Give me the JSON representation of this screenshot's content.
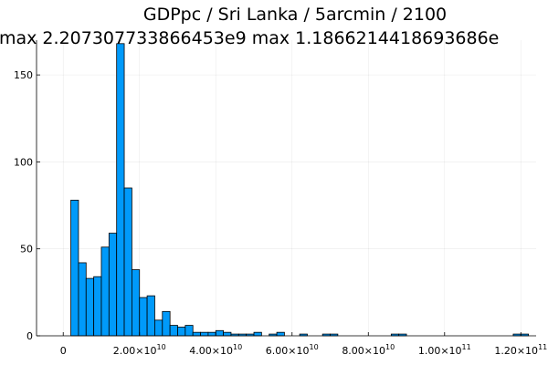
{
  "chart_data": {
    "type": "bar",
    "title": "GDPpc / Sri Lanka / 5arcmin / 2100",
    "subtitle": "max 2.207307733866453e9  max 1.1866214418693686e",
    "xlabel": "",
    "ylabel": "",
    "legend": "none",
    "grid": true,
    "xlim": [
      -7000000000.0,
      124000000000.0
    ],
    "ylim": [
      0,
      170
    ],
    "bin_width": 2000000000.0,
    "series": [
      {
        "color": "#009AFA",
        "bins": [
          {
            "x0": 2000000000.0,
            "x1": 4000000000.0,
            "value": 78
          },
          {
            "x0": 4000000000.0,
            "x1": 6000000000.0,
            "value": 42
          },
          {
            "x0": 6000000000.0,
            "x1": 8000000000.0,
            "value": 33
          },
          {
            "x0": 8000000000.0,
            "x1": 10000000000.0,
            "value": 34
          },
          {
            "x0": 10000000000.0,
            "x1": 12000000000.0,
            "value": 51
          },
          {
            "x0": 12000000000.0,
            "x1": 14000000000.0,
            "value": 59
          },
          {
            "x0": 14000000000.0,
            "x1": 16000000000.0,
            "value": 168
          },
          {
            "x0": 16000000000.0,
            "x1": 18000000000.0,
            "value": 85
          },
          {
            "x0": 18000000000.0,
            "x1": 20000000000.0,
            "value": 38
          },
          {
            "x0": 20000000000.0,
            "x1": 22000000000.0,
            "value": 22
          },
          {
            "x0": 22000000000.0,
            "x1": 24000000000.0,
            "value": 23
          },
          {
            "x0": 24000000000.0,
            "x1": 26000000000.0,
            "value": 9
          },
          {
            "x0": 26000000000.0,
            "x1": 28000000000.0,
            "value": 14
          },
          {
            "x0": 28000000000.0,
            "x1": 30000000000.0,
            "value": 6
          },
          {
            "x0": 30000000000.0,
            "x1": 32000000000.0,
            "value": 5
          },
          {
            "x0": 32000000000.0,
            "x1": 34000000000.0,
            "value": 6
          },
          {
            "x0": 34000000000.0,
            "x1": 36000000000.0,
            "value": 2
          },
          {
            "x0": 36000000000.0,
            "x1": 38000000000.0,
            "value": 2
          },
          {
            "x0": 38000000000.0,
            "x1": 40000000000.0,
            "value": 2
          },
          {
            "x0": 40000000000.0,
            "x1": 42000000000.0,
            "value": 3
          },
          {
            "x0": 42000000000.0,
            "x1": 44000000000.0,
            "value": 2
          },
          {
            "x0": 44000000000.0,
            "x1": 46000000000.0,
            "value": 1
          },
          {
            "x0": 46000000000.0,
            "x1": 48000000000.0,
            "value": 1
          },
          {
            "x0": 48000000000.0,
            "x1": 50000000000.0,
            "value": 1
          },
          {
            "x0": 50000000000.0,
            "x1": 52000000000.0,
            "value": 2
          },
          {
            "x0": 52000000000.0,
            "x1": 54000000000.0,
            "value": 0
          },
          {
            "x0": 54000000000.0,
            "x1": 56000000000.0,
            "value": 1
          },
          {
            "x0": 56000000000.0,
            "x1": 58000000000.0,
            "value": 2
          },
          {
            "x0": 62000000000.0,
            "x1": 64000000000.0,
            "value": 1
          },
          {
            "x0": 68000000000.0,
            "x1": 70000000000.0,
            "value": 1
          },
          {
            "x0": 70000000000.0,
            "x1": 72000000000.0,
            "value": 1
          },
          {
            "x0": 86000000000.0,
            "x1": 88000000000.0,
            "value": 1
          },
          {
            "x0": 88000000000.0,
            "x1": 90000000000.0,
            "value": 1
          },
          {
            "x0": 118000000000.0,
            "x1": 120000000000.0,
            "value": 1
          },
          {
            "x0": 120000000000.0,
            "x1": 122000000000.0,
            "value": 1
          }
        ]
      }
    ],
    "x_ticks": [
      {
        "value": 0,
        "mantissa": "0",
        "exponent": ""
      },
      {
        "value": 20000000000.0,
        "mantissa": "2.00×10",
        "exponent": "10"
      },
      {
        "value": 40000000000.0,
        "mantissa": "4.00×10",
        "exponent": "10"
      },
      {
        "value": 60000000000.0,
        "mantissa": "6.00×10",
        "exponent": "10"
      },
      {
        "value": 80000000000.0,
        "mantissa": "8.00×10",
        "exponent": "10"
      },
      {
        "value": 100000000000.0,
        "mantissa": "1.00×10",
        "exponent": "11"
      },
      {
        "value": 120000000000.0,
        "mantissa": "1.20×10",
        "exponent": "11"
      }
    ],
    "y_ticks": [
      {
        "value": 0,
        "label": "0"
      },
      {
        "value": 50,
        "label": "50"
      },
      {
        "value": 100,
        "label": "100"
      },
      {
        "value": 150,
        "label": "150"
      }
    ]
  }
}
